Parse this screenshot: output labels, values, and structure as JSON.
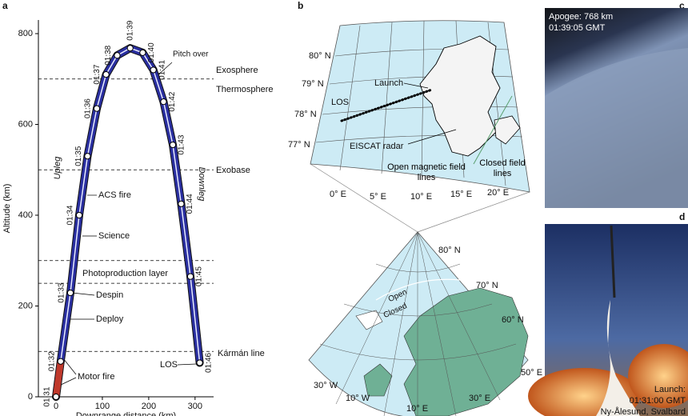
{
  "panel_labels": [
    "a",
    "b",
    "c",
    "d"
  ],
  "chart_data": {
    "type": "line",
    "x_label": "Downrange distance (km)",
    "y_label": "Altitude (km)",
    "x": [
      0,
      10,
      31,
      50,
      68,
      88,
      108,
      132,
      160,
      187,
      210,
      232,
      252,
      270,
      290,
      310
    ],
    "values": [
      0,
      78,
      229,
      400,
      530,
      635,
      710,
      752,
      768,
      758,
      720,
      650,
      555,
      425,
      265,
      75
    ],
    "point_labels": [
      "01:31",
      "01:32",
      "01:33",
      "01:34",
      "01:35",
      "01:36",
      "01:37",
      "01:38",
      "01:39",
      "01:40",
      "01:41",
      "01:42",
      "01:43",
      "01:44",
      "01:45",
      "01:46"
    ],
    "color": "#2a2fa0",
    "xlim": [
      -38,
      340
    ],
    "ylim": [
      0,
      830
    ],
    "xticks": [
      0,
      100,
      200,
      300
    ],
    "yticks": [
      0,
      200,
      400,
      600,
      800
    ],
    "boundaries": [
      700,
      500,
      300,
      250,
      100
    ],
    "annotations": {
      "exosphere": "Exosphere",
      "thermosphere": "Thermosphere",
      "exobase": "Exobase",
      "photoproduction": "Photoproduction layer",
      "karman": "Kármán line",
      "pitch_over": "Pitch over",
      "upleg": "Upleg",
      "downleg": "Downleg",
      "acs_fire": "ACS fire",
      "science": "Science",
      "despin": "Despin",
      "deploy": "Deploy",
      "motor_fire": "Motor fire",
      "los": "LOS"
    }
  },
  "map": {
    "top": {
      "lat_labels": [
        "80° N",
        "79° N",
        "78° N",
        "77° N"
      ],
      "lon_labels": [
        "0° E",
        "5° E",
        "10° E",
        "15° E",
        "20° E"
      ],
      "launch": "Launch",
      "los": "LOS",
      "eiscat": "EISCAT radar",
      "open": "Open magnetic field lines",
      "closed": "Closed field lines"
    },
    "bottom": {
      "lat_labels": [
        "80° N",
        "70° N",
        "60° N",
        "50° E"
      ],
      "lon_labels": [
        "30° W",
        "10° W",
        "10° E",
        "30° E"
      ],
      "open": "Open",
      "closed": "Closed"
    }
  },
  "photos": {
    "apogee": [
      "Apogee: 768 km",
      "01:39:05 GMT"
    ],
    "launch": [
      "Launch:",
      "01:31:00 GMT",
      "Ny-Ålesund, Svalbard"
    ]
  }
}
